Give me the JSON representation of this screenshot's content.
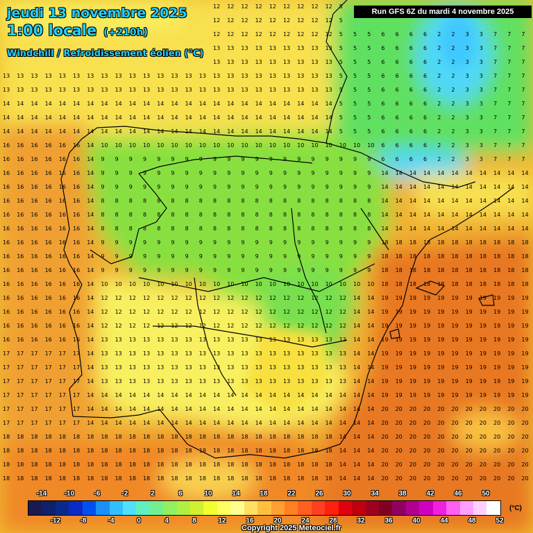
{
  "title": {
    "date": "jeudi 13 novembre 2025",
    "local_time": "1:00 locale",
    "lead_time": "(+210h)",
    "parameter": "Windchill / Refroidissement éolien (°C)"
  },
  "run_info": "Run GFS 6Z du mardi 4 novembre 2025",
  "legend": {
    "unit": "(°C)",
    "labels_top": [
      "-14",
      "-10",
      "-6",
      "-2",
      "2",
      "6",
      "10",
      "14",
      "18",
      "22",
      "26",
      "30",
      "34",
      "38",
      "42",
      "46",
      "50"
    ],
    "labels_bottom": [
      "-12",
      "-8",
      "-4",
      "0",
      "4",
      "8",
      "12",
      "16",
      "20",
      "24",
      "28",
      "32",
      "36",
      "40",
      "44",
      "48",
      "52"
    ],
    "colors": [
      "#1a1a50",
      "#10206a",
      "#082a8a",
      "#0a2ac8",
      "#0050f0",
      "#1890f8",
      "#30c0ff",
      "#50e0ff",
      "#60f0c0",
      "#70f090",
      "#90f060",
      "#b0f040",
      "#d0f030",
      "#f0ff30",
      "#ffff60",
      "#ffff90",
      "#ffe060",
      "#ffc040",
      "#ffa030",
      "#ff8020",
      "#ff6020",
      "#ff4020",
      "#ff2010",
      "#e00010",
      "#c00010",
      "#a00020",
      "#800020",
      "#900060",
      "#b00090",
      "#d000c0",
      "#f020e0",
      "#ff60f0",
      "#ffa0ff",
      "#ffd0ff",
      "#ffffff"
    ]
  },
  "colors": {
    "ocean_west": "#f0a030",
    "ocean_south": "#f08828",
    "mediterranean": "#e87822",
    "north_coast": "#f8f060",
    "land_green": "#88e040",
    "cold_spot": "#50d8f8",
    "border": "#000000"
  },
  "copyright": "Copyright 2025 Meteociel.fr"
}
